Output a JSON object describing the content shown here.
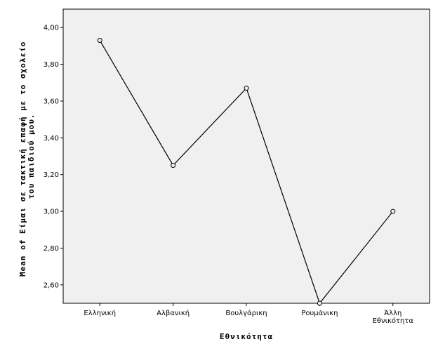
{
  "chart_data": {
    "type": "line",
    "title": "",
    "xlabel": "Εθνικότητα",
    "ylabel_lines": [
      "Mean of Είμαι σε τακτική επαφή με το σχολείο",
      "του παιδιού μου."
    ],
    "ylim": [
      2.5,
      4.1
    ],
    "yticks": [
      "2,60",
      "2,80",
      "3,00",
      "3,20",
      "3,40",
      "3,60",
      "3,80",
      "4,00"
    ],
    "categories": [
      [
        "Ελληνική"
      ],
      [
        "Αλβανική"
      ],
      [
        "Βουλγάρικη"
      ],
      [
        "Ρουμάνικη"
      ],
      [
        "Άλλη",
        "Εθνικότητα"
      ]
    ],
    "series": [
      {
        "values": [
          3.93,
          3.25,
          3.67,
          2.5,
          3.0
        ]
      }
    ],
    "grid": false,
    "legend": "none",
    "colors": {
      "plot_bg": "#f0f0f0",
      "line": "#000000"
    }
  }
}
